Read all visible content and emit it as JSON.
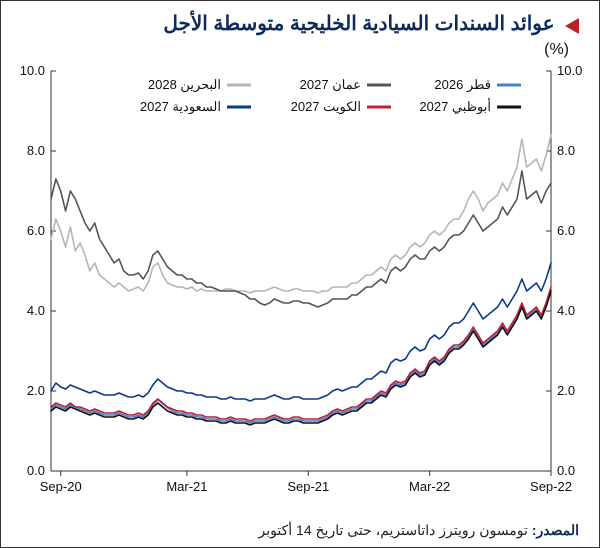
{
  "title": "عوائد السندات السيادية الخليجية متوسطة الأجل",
  "subtitle": "(%)",
  "source_label": "المصدر:",
  "source_text": "تومسون رويترز داتاستريم، حتى تاريخ 14 أكتوبر",
  "chart": {
    "type": "line",
    "background_color": "#ffffff",
    "grid": false,
    "ylim": [
      0,
      10
    ],
    "ytick_step": 2.0,
    "yticks": [
      "0.0",
      "2.0",
      "4.0",
      "6.0",
      "8.0",
      "10.0"
    ],
    "yticks_right": [
      "0.0",
      "2.0",
      "4.0",
      "6.0",
      "8.0",
      "10.0"
    ],
    "xticks": [
      "Sep-20",
      "Mar-21",
      "Sep-21",
      "Mar-22",
      "Sep-22"
    ],
    "x_positions": [
      2,
      28,
      53,
      78,
      103
    ],
    "x_n": 104,
    "axis_color": "#333333",
    "label_fontsize": 13,
    "title_fontsize": 20,
    "title_color": "#0b2b5b",
    "accent_color": "#bb2222",
    "legend": {
      "rows": [
        [
          {
            "label": "قطر 2026",
            "key": "qatar"
          },
          {
            "label": "عمان 2027",
            "key": "oman"
          },
          {
            "label": "البحرين 2028",
            "key": "bahrain"
          }
        ],
        [
          {
            "label": "أبوظبي 2027",
            "key": "abudhabi"
          },
          {
            "label": "الكويت 2027",
            "key": "kuwait"
          },
          {
            "label": "السعودية 2027",
            "key": "saudi"
          }
        ]
      ],
      "position": "top-inside"
    },
    "series": {
      "bahrain": {
        "label": "البحرين 2028",
        "color": "#b5b5b5",
        "line_width": 1.6,
        "y": [
          5.8,
          6.3,
          6.0,
          5.6,
          6.1,
          5.5,
          5.7,
          5.4,
          5.0,
          5.2,
          4.9,
          4.8,
          4.7,
          4.6,
          4.7,
          4.6,
          4.5,
          4.55,
          4.6,
          4.5,
          4.7,
          5.1,
          5.2,
          4.9,
          4.7,
          4.65,
          4.6,
          4.6,
          4.55,
          4.6,
          4.5,
          4.55,
          4.5,
          4.5,
          4.5,
          4.5,
          4.55,
          4.55,
          4.5,
          4.5,
          4.5,
          4.45,
          4.5,
          4.5,
          4.5,
          4.55,
          4.6,
          4.55,
          4.5,
          4.5,
          4.55,
          4.55,
          4.5,
          4.5,
          4.5,
          4.45,
          4.5,
          4.5,
          4.6,
          4.6,
          4.6,
          4.6,
          4.7,
          4.7,
          4.8,
          4.9,
          4.9,
          5.0,
          5.1,
          5.0,
          5.3,
          5.4,
          5.3,
          5.4,
          5.6,
          5.7,
          5.6,
          5.7,
          5.9,
          6.0,
          5.9,
          6.0,
          6.2,
          6.3,
          6.3,
          6.5,
          6.8,
          7.0,
          6.8,
          6.5,
          6.7,
          6.8,
          6.9,
          7.2,
          7.0,
          7.3,
          7.6,
          8.3,
          7.6,
          7.7,
          7.8,
          7.5,
          7.9,
          8.4
        ]
      },
      "oman": {
        "label": "عمان 2027",
        "color": "#555555",
        "line_width": 1.6,
        "y": [
          6.8,
          7.3,
          7.0,
          6.5,
          7.0,
          6.8,
          6.5,
          6.2,
          6.0,
          6.2,
          5.8,
          5.6,
          5.4,
          5.2,
          5.3,
          5.0,
          4.9,
          4.9,
          4.95,
          4.8,
          5.0,
          5.4,
          5.5,
          5.3,
          5.1,
          5.0,
          4.9,
          4.9,
          4.8,
          4.8,
          4.7,
          4.7,
          4.6,
          4.6,
          4.55,
          4.5,
          4.5,
          4.5,
          4.5,
          4.45,
          4.4,
          4.3,
          4.3,
          4.2,
          4.15,
          4.2,
          4.3,
          4.25,
          4.2,
          4.2,
          4.25,
          4.25,
          4.2,
          4.2,
          4.15,
          4.1,
          4.15,
          4.2,
          4.3,
          4.3,
          4.3,
          4.3,
          4.4,
          4.4,
          4.5,
          4.6,
          4.6,
          4.7,
          4.8,
          4.7,
          5.0,
          5.1,
          5.0,
          5.1,
          5.3,
          5.4,
          5.3,
          5.3,
          5.5,
          5.6,
          5.5,
          5.6,
          5.8,
          5.9,
          5.9,
          6.0,
          6.2,
          6.4,
          6.2,
          6.0,
          6.1,
          6.2,
          6.3,
          6.6,
          6.4,
          6.6,
          6.8,
          7.5,
          6.8,
          6.9,
          7.0,
          6.7,
          7.0,
          7.2
        ]
      },
      "saudi": {
        "label": "السعودية 2027",
        "color": "#0b3a8a",
        "line_width": 1.6,
        "y": [
          2.0,
          2.2,
          2.1,
          2.05,
          2.15,
          2.1,
          2.05,
          2.0,
          1.95,
          2.0,
          1.95,
          1.9,
          1.9,
          1.9,
          1.95,
          1.9,
          1.85,
          1.85,
          1.9,
          1.85,
          1.95,
          2.15,
          2.3,
          2.2,
          2.1,
          2.05,
          2.0,
          2.0,
          1.95,
          1.95,
          1.9,
          1.9,
          1.85,
          1.85,
          1.85,
          1.8,
          1.8,
          1.85,
          1.8,
          1.8,
          1.8,
          1.75,
          1.8,
          1.8,
          1.8,
          1.85,
          1.9,
          1.85,
          1.8,
          1.8,
          1.85,
          1.85,
          1.8,
          1.8,
          1.8,
          1.8,
          1.85,
          1.9,
          2.0,
          2.05,
          2.0,
          2.05,
          2.1,
          2.1,
          2.2,
          2.3,
          2.3,
          2.4,
          2.5,
          2.45,
          2.7,
          2.8,
          2.75,
          2.8,
          3.0,
          3.1,
          3.0,
          3.05,
          3.3,
          3.4,
          3.3,
          3.4,
          3.6,
          3.7,
          3.7,
          3.8,
          4.0,
          4.2,
          4.0,
          3.8,
          3.9,
          4.0,
          4.1,
          4.3,
          4.1,
          4.3,
          4.5,
          4.8,
          4.5,
          4.6,
          4.7,
          4.5,
          4.8,
          5.2
        ]
      },
      "kuwait": {
        "label": "الكويت 2027",
        "color": "#c02030",
        "line_width": 1.6,
        "y": [
          1.6,
          1.7,
          1.65,
          1.6,
          1.7,
          1.6,
          1.6,
          1.55,
          1.5,
          1.55,
          1.5,
          1.45,
          1.45,
          1.45,
          1.5,
          1.45,
          1.4,
          1.4,
          1.45,
          1.4,
          1.5,
          1.7,
          1.8,
          1.7,
          1.6,
          1.55,
          1.5,
          1.5,
          1.45,
          1.45,
          1.4,
          1.4,
          1.35,
          1.35,
          1.35,
          1.3,
          1.3,
          1.35,
          1.3,
          1.3,
          1.3,
          1.25,
          1.3,
          1.3,
          1.3,
          1.35,
          1.4,
          1.35,
          1.3,
          1.3,
          1.35,
          1.35,
          1.3,
          1.3,
          1.3,
          1.3,
          1.35,
          1.4,
          1.5,
          1.55,
          1.5,
          1.55,
          1.6,
          1.6,
          1.7,
          1.8,
          1.8,
          1.9,
          2.0,
          1.95,
          2.15,
          2.25,
          2.2,
          2.25,
          2.45,
          2.55,
          2.45,
          2.5,
          2.75,
          2.85,
          2.75,
          2.85,
          3.05,
          3.15,
          3.15,
          3.25,
          3.4,
          3.6,
          3.4,
          3.2,
          3.3,
          3.4,
          3.5,
          3.7,
          3.5,
          3.7,
          3.9,
          4.2,
          3.9,
          4.0,
          4.1,
          3.9,
          4.2,
          4.6
        ]
      },
      "abudhabi": {
        "label": "أبوظبي 2027",
        "color": "#111111",
        "line_width": 1.6,
        "y": [
          1.5,
          1.6,
          1.55,
          1.5,
          1.6,
          1.55,
          1.5,
          1.45,
          1.4,
          1.45,
          1.4,
          1.35,
          1.35,
          1.35,
          1.4,
          1.35,
          1.3,
          1.3,
          1.35,
          1.3,
          1.4,
          1.6,
          1.7,
          1.6,
          1.5,
          1.45,
          1.4,
          1.4,
          1.35,
          1.35,
          1.3,
          1.3,
          1.25,
          1.25,
          1.25,
          1.2,
          1.2,
          1.25,
          1.2,
          1.2,
          1.2,
          1.15,
          1.2,
          1.2,
          1.2,
          1.25,
          1.3,
          1.25,
          1.2,
          1.2,
          1.25,
          1.25,
          1.2,
          1.2,
          1.2,
          1.2,
          1.25,
          1.3,
          1.4,
          1.45,
          1.4,
          1.45,
          1.5,
          1.5,
          1.6,
          1.7,
          1.7,
          1.8,
          1.9,
          1.85,
          2.05,
          2.15,
          2.1,
          2.15,
          2.35,
          2.45,
          2.35,
          2.4,
          2.65,
          2.75,
          2.65,
          2.75,
          2.95,
          3.05,
          3.05,
          3.15,
          3.3,
          3.5,
          3.3,
          3.1,
          3.2,
          3.3,
          3.4,
          3.6,
          3.4,
          3.6,
          3.8,
          4.1,
          3.8,
          3.9,
          4.0,
          3.8,
          4.1,
          4.5
        ]
      },
      "qatar": {
        "label": "قطر 2026",
        "color": "#4a7fd8",
        "line_width": 1.6,
        "y": [
          1.55,
          1.65,
          1.6,
          1.55,
          1.65,
          1.6,
          1.55,
          1.5,
          1.45,
          1.5,
          1.45,
          1.4,
          1.4,
          1.4,
          1.45,
          1.4,
          1.35,
          1.35,
          1.4,
          1.35,
          1.45,
          1.65,
          1.78,
          1.68,
          1.58,
          1.5,
          1.45,
          1.45,
          1.4,
          1.4,
          1.35,
          1.35,
          1.3,
          1.3,
          1.3,
          1.25,
          1.25,
          1.3,
          1.25,
          1.25,
          1.25,
          1.2,
          1.25,
          1.25,
          1.25,
          1.3,
          1.35,
          1.3,
          1.25,
          1.25,
          1.3,
          1.3,
          1.25,
          1.25,
          1.25,
          1.25,
          1.3,
          1.35,
          1.45,
          1.5,
          1.45,
          1.5,
          1.55,
          1.55,
          1.65,
          1.75,
          1.75,
          1.85,
          1.95,
          1.9,
          2.1,
          2.2,
          2.15,
          2.2,
          2.4,
          2.5,
          2.4,
          2.45,
          2.7,
          2.8,
          2.7,
          2.8,
          3.0,
          3.1,
          3.1,
          3.2,
          3.35,
          3.55,
          3.35,
          3.15,
          3.25,
          3.35,
          3.45,
          3.65,
          3.45,
          3.65,
          3.85,
          4.15,
          3.85,
          3.95,
          4.05,
          3.85,
          4.15,
          4.55
        ]
      }
    }
  }
}
